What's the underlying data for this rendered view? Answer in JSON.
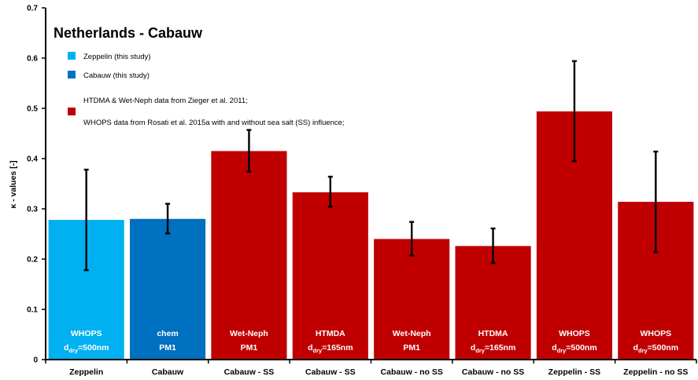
{
  "chart_data": {
    "type": "bar",
    "title": "Netherlands - Cabauw",
    "ylabel": "κ - values [-]",
    "xlabel": "",
    "ylim": [
      0,
      0.7
    ],
    "yticks": [
      "0",
      "0.1",
      "0.2",
      "0.3",
      "0.4",
      "0.5",
      "0.6",
      "0.7"
    ],
    "grid": false,
    "categories": [
      "Zeppelin",
      "Cabauw",
      "Cabauw - SS",
      "Cabauw - SS",
      "Cabauw - no SS",
      "Cabauw - no SS",
      "Zeppelin - SS",
      "Zeppelin - no SS"
    ],
    "values": [
      0.278,
      0.28,
      0.415,
      0.333,
      0.24,
      0.226,
      0.494,
      0.314
    ],
    "error_low": [
      0.178,
      0.251,
      0.374,
      0.304,
      0.207,
      0.192,
      0.395,
      0.214
    ],
    "error_high": [
      0.378,
      0.31,
      0.457,
      0.364,
      0.274,
      0.261,
      0.594,
      0.414
    ],
    "bar_colors": [
      "#00b0f0",
      "#0070c0",
      "#c00000",
      "#c00000",
      "#c00000",
      "#c00000",
      "#c00000",
      "#c00000"
    ],
    "bar_labels": [
      {
        "line1": "WHOPS",
        "main": "d",
        "sub": "dry",
        "rest": "=500nm"
      },
      {
        "line1": "chem",
        "main": "PM1",
        "sub": "",
        "rest": ""
      },
      {
        "line1": "Wet-Neph",
        "main": "PM1",
        "sub": "",
        "rest": ""
      },
      {
        "line1": "HTMDA",
        "main": "d",
        "sub": "dry",
        "rest": "=165nm"
      },
      {
        "line1": "Wet-Neph",
        "main": "PM1",
        "sub": "",
        "rest": ""
      },
      {
        "line1": "HTDMA",
        "main": "d",
        "sub": "dry",
        "rest": "=165nm"
      },
      {
        "line1": "WHOPS",
        "main": "d",
        "sub": "dry",
        "rest": "=500nm"
      },
      {
        "line1": "WHOPS",
        "main": "d",
        "sub": "dry",
        "rest": "=500nm"
      }
    ],
    "legend": [
      {
        "color": "#00b0f0",
        "lines": [
          "Zeppelin (this study)"
        ]
      },
      {
        "color": "#0070c0",
        "lines": [
          "Cabauw (this study)"
        ]
      },
      {
        "color": "#c00000",
        "lines": [
          "HTDMA & Wet-Neph data from Zieger et al. 2011;",
          "WHOPS data from Rosati et al. 2015a with and without sea salt (SS) influence;"
        ]
      }
    ],
    "legend_position": "top-left"
  }
}
